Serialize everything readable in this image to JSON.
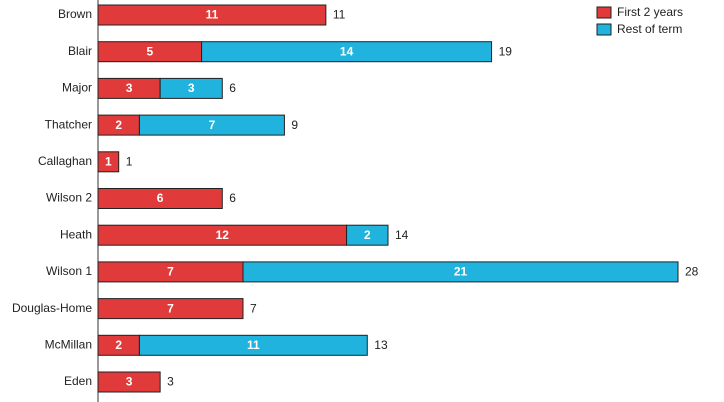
{
  "chart_data": {
    "type": "bar",
    "orientation": "horizontal",
    "stacked": true,
    "categories": [
      "Brown",
      "Blair",
      "Major",
      "Thatcher",
      "Callaghan",
      "Wilson 2",
      "Heath",
      "Wilson 1",
      "Douglas-Home",
      "McMillan",
      "Eden"
    ],
    "series": [
      {
        "name": "First 2 years",
        "color": "#e03a3a",
        "values": [
          11,
          5,
          3,
          2,
          1,
          6,
          12,
          7,
          7,
          2,
          3
        ]
      },
      {
        "name": "Rest of term",
        "color": "#1fb3dd",
        "values": [
          0,
          14,
          3,
          7,
          0,
          0,
          2,
          21,
          0,
          11,
          0
        ]
      }
    ],
    "totals": [
      11,
      19,
      6,
      9,
      1,
      6,
      14,
      28,
      7,
      13,
      3
    ],
    "xlim": [
      0,
      28
    ],
    "grid": false,
    "legend_position": "top-right"
  }
}
